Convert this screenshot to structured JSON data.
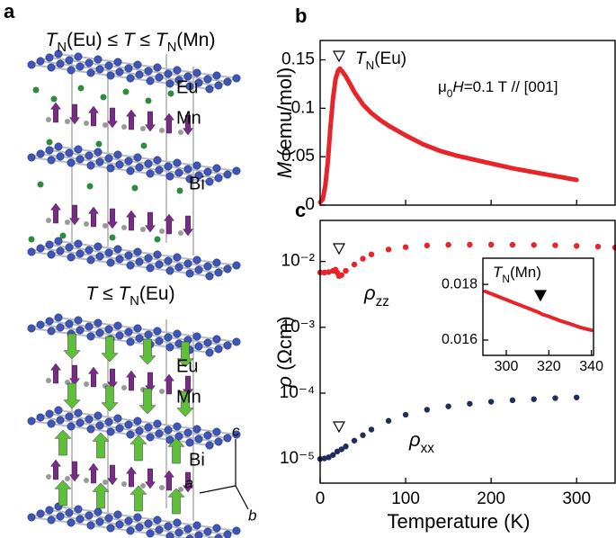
{
  "panel_a": {
    "panel_label": "a",
    "title_top": [
      {
        "text": "T",
        "style": "italic"
      },
      {
        "text": "N",
        "style": "sub"
      },
      {
        "text": "(Eu) ≤ ",
        "style": "normal"
      },
      {
        "text": "T",
        "style": "italic"
      },
      {
        "text": " ≤ ",
        "style": "normal"
      },
      {
        "text": "T",
        "style": "italic"
      },
      {
        "text": "N",
        "style": "sub"
      },
      {
        "text": "(Mn)",
        "style": "normal"
      }
    ],
    "labels_top": [
      "Eu",
      "Mn",
      "Bi"
    ],
    "title_bottom": [
      {
        "text": "T",
        "style": "italic"
      },
      {
        "text": " ≤ ",
        "style": "normal"
      },
      {
        "text": "T",
        "style": "italic"
      },
      {
        "text": "N",
        "style": "sub"
      },
      {
        "text": "(Eu)",
        "style": "normal"
      }
    ],
    "labels_bottom": [
      "Eu",
      "Mn",
      "Bi"
    ],
    "axes": [
      "c",
      "a",
      "b"
    ]
  },
  "chart_data": [
    {
      "type": "line",
      "panel_label": "b",
      "ylabel": [
        {
          "text": "M",
          "style": "italic"
        },
        {
          "text": " (emu/mol)",
          "style": "normal"
        }
      ],
      "xlim": [
        0,
        345
      ],
      "ylim": [
        0,
        0.17
      ],
      "yticks": [
        0,
        0.05,
        0.1,
        0.15
      ],
      "series": [
        {
          "color": "#e8242a",
          "x": [
            0,
            3,
            6,
            9,
            12,
            15,
            18,
            21,
            23,
            26,
            30,
            35,
            40,
            50,
            60,
            70,
            80,
            100,
            120,
            140,
            160,
            180,
            200,
            225,
            250,
            275,
            300
          ],
          "values": [
            0.003,
            0.006,
            0.02,
            0.045,
            0.08,
            0.11,
            0.13,
            0.139,
            0.141,
            0.138,
            0.133,
            0.125,
            0.117,
            0.104,
            0.095,
            0.088,
            0.082,
            0.072,
            0.063,
            0.056,
            0.051,
            0.047,
            0.043,
            0.038,
            0.034,
            0.03,
            0.026
          ]
        }
      ],
      "annotations": [
        [
          {
            "text": "T",
            "style": "italic"
          },
          {
            "text": "N",
            "style": "sub"
          },
          {
            "text": "(Eu)",
            "style": "normal"
          }
        ],
        [
          {
            "text": "μ",
            "style": "normal"
          },
          {
            "text": "0",
            "style": "sub"
          },
          {
            "text": "H",
            "style": "italic"
          },
          {
            "text": "=0.1 T // [001]",
            "style": "normal"
          }
        ]
      ]
    },
    {
      "type": "scatter",
      "panel_label": "c",
      "log_y": true,
      "xlabel": "Temperature (K)",
      "ylabel": [
        {
          "text": "ρ",
          "style": "italic"
        },
        {
          "text": " (Ωcm)",
          "style": "normal"
        }
      ],
      "xlim": [
        0,
        345
      ],
      "xticks": [
        0,
        100,
        200,
        300
      ],
      "ylim": [
        4.3e-06,
        0.042
      ],
      "yticks": [
        {
          "value": 1e-05,
          "label": "10⁻⁵"
        },
        {
          "value": 0.0001,
          "label": "10⁻⁴"
        },
        {
          "value": 0.001,
          "label": "10⁻³"
        },
        {
          "value": 0.01,
          "label": "10⁻²"
        }
      ],
      "series": [
        {
          "name": [
            {
              "text": "ρ",
              "style": "italic"
            },
            {
              "text": "zz",
              "style": "sub"
            }
          ],
          "color": "#e8242a",
          "x": [
            0,
            5,
            10,
            15,
            18,
            20,
            22,
            25,
            30,
            40,
            50,
            60,
            80,
            100,
            125,
            150,
            175,
            200,
            225,
            250,
            275,
            300,
            325,
            345
          ],
          "values": [
            0.0068,
            0.0068,
            0.0069,
            0.0072,
            0.0075,
            0.0068,
            0.006,
            0.0062,
            0.0072,
            0.009,
            0.011,
            0.0128,
            0.0152,
            0.0165,
            0.0175,
            0.0179,
            0.018,
            0.018,
            0.0179,
            0.0178,
            0.0176,
            0.0172,
            0.0168,
            0.0163
          ]
        },
        {
          "name": [
            {
              "text": "ρ",
              "style": "italic"
            },
            {
              "text": "xx",
              "style": "sub"
            }
          ],
          "color": "#1f2d5c",
          "x": [
            0,
            5,
            10,
            15,
            20,
            25,
            30,
            40,
            50,
            60,
            80,
            100,
            125,
            150,
            175,
            200,
            225,
            250,
            275,
            300
          ],
          "values": [
            1e-05,
            1.02e-05,
            1.06e-05,
            1.15e-05,
            1.3e-05,
            1.4e-05,
            1.55e-05,
            1.9e-05,
            2.3e-05,
            2.8e-05,
            3.8e-05,
            4.7e-05,
            5.6e-05,
            6.3e-05,
            6.9e-05,
            7.4e-05,
            7.8e-05,
            8.1e-05,
            8.4e-05,
            8.6e-05
          ]
        }
      ]
    },
    {
      "type": "line",
      "xlim": [
        289,
        341
      ],
      "xticks": [
        300,
        320,
        340
      ],
      "ylim": [
        0.01545,
        0.01894
      ],
      "yticks": [
        0.016,
        0.018
      ],
      "series": [
        {
          "color": "#e8242a",
          "x": [
            290,
            295,
            300,
            305,
            310,
            315,
            317,
            320,
            325,
            330,
            335,
            340
          ],
          "values": [
            0.01775,
            0.0176,
            0.01745,
            0.0173,
            0.01715,
            0.017,
            0.01692,
            0.01685,
            0.0167,
            0.01658,
            0.01645,
            0.01635
          ]
        }
      ],
      "annotations": [
        [
          {
            "text": "T",
            "style": "italic"
          },
          {
            "text": "N",
            "style": "sub"
          },
          {
            "text": "(Mn)",
            "style": "normal"
          }
        ]
      ]
    }
  ]
}
